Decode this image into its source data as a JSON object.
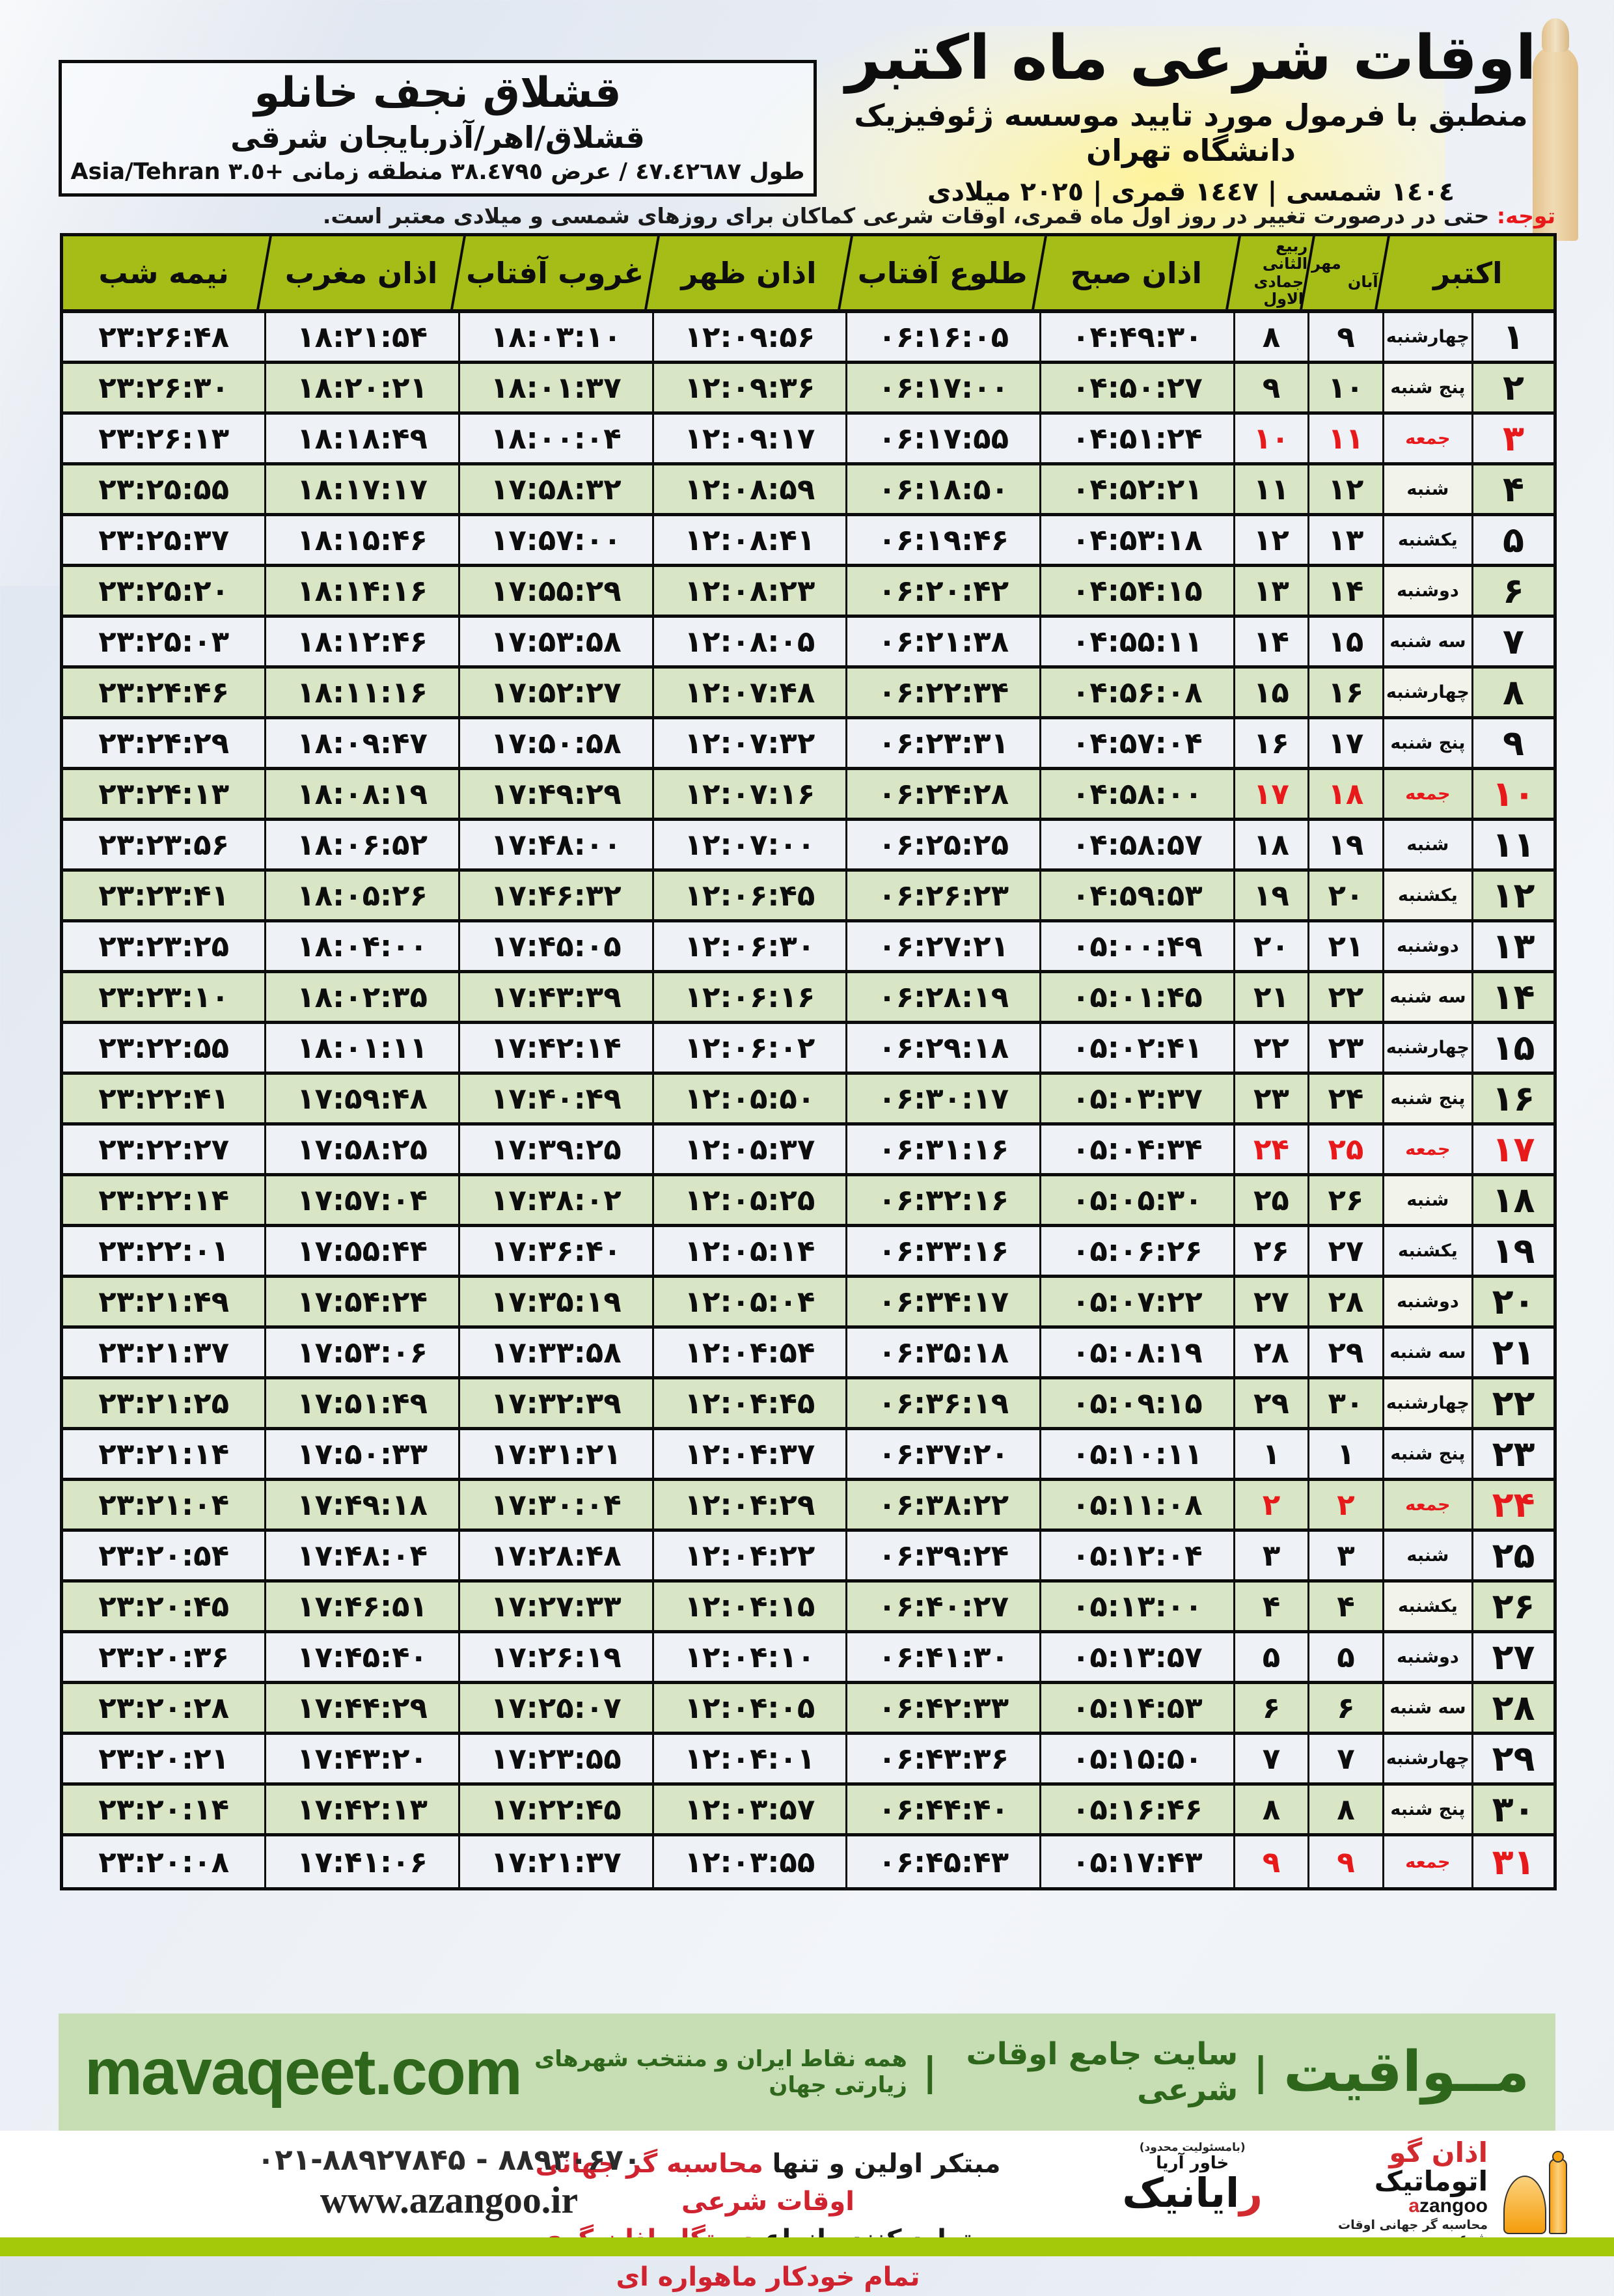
{
  "header": {
    "title": "اوقات شرعی ماه اکتبر",
    "subtitle": "منطبق با فرمول مورد تایید موسسه ژئوفیزیک دانشگاه تهران",
    "years": "١٤٠٤ شمسی | ١٤٤٧ قمری | ٢٠٢٥ میلادی"
  },
  "location": {
    "name": "قشلاق نجف خانلو",
    "region": "قشلاق/اهر/آذربایجان شرقی",
    "coords": "طول ٤٧.٤٢٦٨٧ / عرض ٣٨.٤٧٩٥ منطقه زمانی +٣.٥ Asia/Tehran"
  },
  "note": {
    "label": "توجه:",
    "text": " حتی در درصورت تغییر در روز اول ماه قمری، اوقات شرعی کماکان برای روزهای شمسی و میلادی معتبر است."
  },
  "table": {
    "friday_weekday": "جمعه",
    "columns": {
      "october": "اکتبر",
      "mehr": "مهر",
      "aban": "آبان",
      "rabi": "ربیع الثانی",
      "jumada": "جمادی الاول",
      "fajr": "اذان صبح",
      "sunrise": "طلوع آفتاب",
      "dhuhr": "اذان ظهر",
      "sunset": "غروب آفتاب",
      "maghrib": "اذان مغرب",
      "midnight": "نیمه شب"
    },
    "rows": [
      {
        "oct": 1,
        "weekday": "چهارشنبه",
        "mehr": 9,
        "hijri": 8,
        "fajr": "04:49:30",
        "sunrise": "06:16:05",
        "dhuhr": "12:09:56",
        "sunset": "18:03:10",
        "maghrib": "18:21:54",
        "midnight": "23:26:48"
      },
      {
        "oct": 2,
        "weekday": "پنج شنبه",
        "mehr": 10,
        "hijri": 9,
        "fajr": "04:50:27",
        "sunrise": "06:17:00",
        "dhuhr": "12:09:36",
        "sunset": "18:01:37",
        "maghrib": "18:20:21",
        "midnight": "23:26:30"
      },
      {
        "oct": 3,
        "weekday": "جمعه",
        "mehr": 11,
        "hijri": 10,
        "fajr": "04:51:24",
        "sunrise": "06:17:55",
        "dhuhr": "12:09:17",
        "sunset": "18:00:04",
        "maghrib": "18:18:49",
        "midnight": "23:26:13"
      },
      {
        "oct": 4,
        "weekday": "شنبه",
        "mehr": 12,
        "hijri": 11,
        "fajr": "04:52:21",
        "sunrise": "06:18:50",
        "dhuhr": "12:08:59",
        "sunset": "17:58:32",
        "maghrib": "18:17:17",
        "midnight": "23:25:55"
      },
      {
        "oct": 5,
        "weekday": "یکشنبه",
        "mehr": 13,
        "hijri": 12,
        "fajr": "04:53:18",
        "sunrise": "06:19:46",
        "dhuhr": "12:08:41",
        "sunset": "17:57:00",
        "maghrib": "18:15:46",
        "midnight": "23:25:37"
      },
      {
        "oct": 6,
        "weekday": "دوشنبه",
        "mehr": 14,
        "hijri": 13,
        "fajr": "04:54:15",
        "sunrise": "06:20:42",
        "dhuhr": "12:08:23",
        "sunset": "17:55:29",
        "maghrib": "18:14:16",
        "midnight": "23:25:20"
      },
      {
        "oct": 7,
        "weekday": "سه شنبه",
        "mehr": 15,
        "hijri": 14,
        "fajr": "04:55:11",
        "sunrise": "06:21:38",
        "dhuhr": "12:08:05",
        "sunset": "17:53:58",
        "maghrib": "18:12:46",
        "midnight": "23:25:03"
      },
      {
        "oct": 8,
        "weekday": "چهارشنبه",
        "mehr": 16,
        "hijri": 15,
        "fajr": "04:56:08",
        "sunrise": "06:22:34",
        "dhuhr": "12:07:48",
        "sunset": "17:52:27",
        "maghrib": "18:11:16",
        "midnight": "23:24:46"
      },
      {
        "oct": 9,
        "weekday": "پنج شنبه",
        "mehr": 17,
        "hijri": 16,
        "fajr": "04:57:04",
        "sunrise": "06:23:31",
        "dhuhr": "12:07:32",
        "sunset": "17:50:58",
        "maghrib": "18:09:47",
        "midnight": "23:24:29"
      },
      {
        "oct": 10,
        "weekday": "جمعه",
        "mehr": 18,
        "hijri": 17,
        "fajr": "04:58:00",
        "sunrise": "06:24:28",
        "dhuhr": "12:07:16",
        "sunset": "17:49:29",
        "maghrib": "18:08:19",
        "midnight": "23:24:13"
      },
      {
        "oct": 11,
        "weekday": "شنبه",
        "mehr": 19,
        "hijri": 18,
        "fajr": "04:58:57",
        "sunrise": "06:25:25",
        "dhuhr": "12:07:00",
        "sunset": "17:48:00",
        "maghrib": "18:06:52",
        "midnight": "23:23:56"
      },
      {
        "oct": 12,
        "weekday": "یکشنبه",
        "mehr": 20,
        "hijri": 19,
        "fajr": "04:59:53",
        "sunrise": "06:26:23",
        "dhuhr": "12:06:45",
        "sunset": "17:46:32",
        "maghrib": "18:05:26",
        "midnight": "23:23:41"
      },
      {
        "oct": 13,
        "weekday": "دوشنبه",
        "mehr": 21,
        "hijri": 20,
        "fajr": "05:00:49",
        "sunrise": "06:27:21",
        "dhuhr": "12:06:30",
        "sunset": "17:45:05",
        "maghrib": "18:04:00",
        "midnight": "23:23:25"
      },
      {
        "oct": 14,
        "weekday": "سه شنبه",
        "mehr": 22,
        "hijri": 21,
        "fajr": "05:01:45",
        "sunrise": "06:28:19",
        "dhuhr": "12:06:16",
        "sunset": "17:43:39",
        "maghrib": "18:02:35",
        "midnight": "23:23:10"
      },
      {
        "oct": 15,
        "weekday": "چهارشنبه",
        "mehr": 23,
        "hijri": 22,
        "fajr": "05:02:41",
        "sunrise": "06:29:18",
        "dhuhr": "12:06:02",
        "sunset": "17:42:14",
        "maghrib": "18:01:11",
        "midnight": "23:22:55"
      },
      {
        "oct": 16,
        "weekday": "پنج شنبه",
        "mehr": 24,
        "hijri": 23,
        "fajr": "05:03:37",
        "sunrise": "06:30:17",
        "dhuhr": "12:05:50",
        "sunset": "17:40:49",
        "maghrib": "17:59:48",
        "midnight": "23:22:41"
      },
      {
        "oct": 17,
        "weekday": "جمعه",
        "mehr": 25,
        "hijri": 24,
        "fajr": "05:04:34",
        "sunrise": "06:31:16",
        "dhuhr": "12:05:37",
        "sunset": "17:39:25",
        "maghrib": "17:58:25",
        "midnight": "23:22:27"
      },
      {
        "oct": 18,
        "weekday": "شنبه",
        "mehr": 26,
        "hijri": 25,
        "fajr": "05:05:30",
        "sunrise": "06:32:16",
        "dhuhr": "12:05:25",
        "sunset": "17:38:02",
        "maghrib": "17:57:04",
        "midnight": "23:22:14"
      },
      {
        "oct": 19,
        "weekday": "یکشنبه",
        "mehr": 27,
        "hijri": 26,
        "fajr": "05:06:26",
        "sunrise": "06:33:16",
        "dhuhr": "12:05:14",
        "sunset": "17:36:40",
        "maghrib": "17:55:44",
        "midnight": "23:22:01"
      },
      {
        "oct": 20,
        "weekday": "دوشنبه",
        "mehr": 28,
        "hijri": 27,
        "fajr": "05:07:22",
        "sunrise": "06:34:17",
        "dhuhr": "12:05:04",
        "sunset": "17:35:19",
        "maghrib": "17:54:24",
        "midnight": "23:21:49"
      },
      {
        "oct": 21,
        "weekday": "سه شنبه",
        "mehr": 29,
        "hijri": 28,
        "fajr": "05:08:19",
        "sunrise": "06:35:18",
        "dhuhr": "12:04:54",
        "sunset": "17:33:58",
        "maghrib": "17:53:06",
        "midnight": "23:21:37"
      },
      {
        "oct": 22,
        "weekday": "چهارشنبه",
        "mehr": 30,
        "hijri": 29,
        "fajr": "05:09:15",
        "sunrise": "06:36:19",
        "dhuhr": "12:04:45",
        "sunset": "17:32:39",
        "maghrib": "17:51:49",
        "midnight": "23:21:25"
      },
      {
        "oct": 23,
        "weekday": "پنج شنبه",
        "mehr": 1,
        "hijri": 1,
        "fajr": "05:10:11",
        "sunrise": "06:37:20",
        "dhuhr": "12:04:37",
        "sunset": "17:31:21",
        "maghrib": "17:50:33",
        "midnight": "23:21:14"
      },
      {
        "oct": 24,
        "weekday": "جمعه",
        "mehr": 2,
        "hijri": 2,
        "fajr": "05:11:08",
        "sunrise": "06:38:22",
        "dhuhr": "12:04:29",
        "sunset": "17:30:04",
        "maghrib": "17:49:18",
        "midnight": "23:21:04"
      },
      {
        "oct": 25,
        "weekday": "شنبه",
        "mehr": 3,
        "hijri": 3,
        "fajr": "05:12:04",
        "sunrise": "06:39:24",
        "dhuhr": "12:04:22",
        "sunset": "17:28:48",
        "maghrib": "17:48:04",
        "midnight": "23:20:54"
      },
      {
        "oct": 26,
        "weekday": "یکشنبه",
        "mehr": 4,
        "hijri": 4,
        "fajr": "05:13:00",
        "sunrise": "06:40:27",
        "dhuhr": "12:04:15",
        "sunset": "17:27:33",
        "maghrib": "17:46:51",
        "midnight": "23:20:45"
      },
      {
        "oct": 27,
        "weekday": "دوشنبه",
        "mehr": 5,
        "hijri": 5,
        "fajr": "05:13:57",
        "sunrise": "06:41:30",
        "dhuhr": "12:04:10",
        "sunset": "17:26:19",
        "maghrib": "17:45:40",
        "midnight": "23:20:36"
      },
      {
        "oct": 28,
        "weekday": "سه شنبه",
        "mehr": 6,
        "hijri": 6,
        "fajr": "05:14:53",
        "sunrise": "06:42:33",
        "dhuhr": "12:04:05",
        "sunset": "17:25:07",
        "maghrib": "17:44:29",
        "midnight": "23:20:28"
      },
      {
        "oct": 29,
        "weekday": "چهارشنبه",
        "mehr": 7,
        "hijri": 7,
        "fajr": "05:15:50",
        "sunrise": "06:43:36",
        "dhuhr": "12:04:01",
        "sunset": "17:23:55",
        "maghrib": "17:43:20",
        "midnight": "23:20:21"
      },
      {
        "oct": 30,
        "weekday": "پنج شنبه",
        "mehr": 8,
        "hijri": 8,
        "fajr": "05:16:46",
        "sunrise": "06:44:40",
        "dhuhr": "12:03:57",
        "sunset": "17:22:45",
        "maghrib": "17:42:13",
        "midnight": "23:20:14"
      },
      {
        "oct": 31,
        "weekday": "جمعه",
        "mehr": 9,
        "hijri": 9,
        "fajr": "05:17:43",
        "sunrise": "06:45:43",
        "dhuhr": "12:03:55",
        "sunset": "17:21:37",
        "maghrib": "17:41:06",
        "midnight": "23:20:08"
      }
    ]
  },
  "band": {
    "brand": "مــواقیت",
    "separator": "|",
    "tagline1": "سایت جامع اوقات شرعی",
    "tagline2": "همه نقاط ایران و منتخب شهرهای زیارتی جهان",
    "site": "mavaqeet.com"
  },
  "footer": {
    "line1_black": "مبتکر اولین و تنها ",
    "line1_red": "محاسبه گر جهانی اوقات شرعی",
    "line2_black": "و تولید کننده انواع ",
    "line2_red": "دستگاه اذان گوی تمام خودکار ماهواره ای",
    "phone": "۰۲۱-۸۸۹۲۷۸۴۵ - ۸۸۹۳۰۶۷۰",
    "url": "www.azangoo.ir",
    "azangoo": {
      "name_first": "اذان گو",
      "name_rest": " اتوماتیک",
      "latin_first": "a",
      "latin_rest": "zangoo",
      "tagline": "محاسبه گر جهانی اوقات شرعی"
    },
    "rayanik": {
      "tiny": "(بامسئولیت محدود)",
      "sub": "خاور آریا",
      "name_first": "ر",
      "name_rest": "ایانیک"
    }
  },
  "colors": {
    "header_green": "#a6bd17",
    "row_green": "#d9e6c5",
    "row_white": "#eef1f6",
    "friday_red": "#e8191b",
    "band_bg": "#c7deb5",
    "band_text": "#2e661b",
    "lime_bar": "#a4c90b"
  }
}
